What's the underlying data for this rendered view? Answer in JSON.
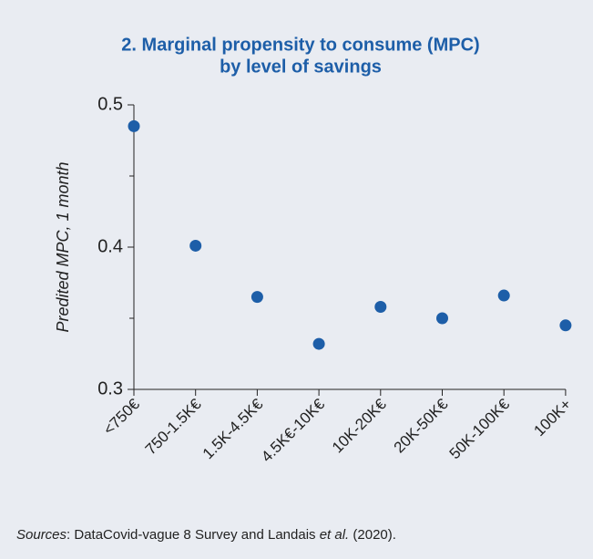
{
  "chart_data": {
    "type": "scatter",
    "title": [
      "2. Marginal propensity to consume (MPC)",
      "by level of savings"
    ],
    "y_label": "Predited MPC, 1 month",
    "categories": [
      "<750€",
      "750-1.5K€",
      "1.5K-4.5K€",
      "4.5K€-10K€",
      "10K-20K€",
      "20K-50K€",
      "50K-100K€",
      "100K+"
    ],
    "values": [
      0.485,
      0.401,
      0.365,
      0.332,
      0.358,
      0.35,
      0.366,
      0.345
    ],
    "color": "#1d5ea8",
    "ylim": [
      0.3,
      0.5
    ],
    "yticks": [
      0.3,
      0.4,
      0.5
    ],
    "yminorticks": [
      0.35,
      0.45
    ],
    "source": [
      {
        "text": "Sources",
        "italic": true
      },
      {
        "text": ": DataCovid-vague 8 Survey and Landais ",
        "italic": false
      },
      {
        "text": "et al.",
        "italic": true
      },
      {
        "text": " (2020).",
        "italic": false
      }
    ]
  }
}
